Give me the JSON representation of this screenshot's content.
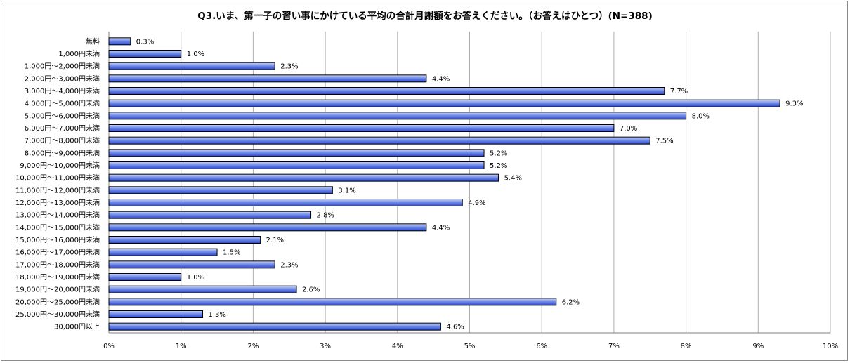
{
  "chart_data": {
    "type": "bar",
    "orientation": "horizontal",
    "title": "Q3.いま、第一子の習い事にかけている平均の合計月謝額をお答えください。（お答えはひとつ）(N=388)",
    "categories": [
      "無料",
      "1,000円未満",
      "1,000円～2,000円未満",
      "2,000円～3,000円未満",
      "3,000円～4,000円未満",
      "4,000円～5,000円未満",
      "5,000円～6,000円未満",
      "6,000円～7,000円未満",
      "7,000円～8,000円未満",
      "8,000円～9,000円未満",
      "9,000円～10,000円未満",
      "10,000円～11,000円未満",
      "11,000円～12,000円未満",
      "12,000円～13,000円未満",
      "13,000円～14,000円未満",
      "14,000円～15,000円未満",
      "15,000円～16,000円未満",
      "16,000円～17,000円未満",
      "17,000円～18,000円未満",
      "18,000円～19,000円未満",
      "19,000円～20,000円未満",
      "20,000円～25,000円未満",
      "25,000円～30,000円未満",
      "30,000円以上"
    ],
    "values": [
      0.3,
      1.0,
      2.3,
      4.4,
      7.7,
      9.3,
      8.0,
      7.0,
      7.5,
      5.2,
      5.2,
      5.4,
      3.1,
      4.9,
      2.8,
      4.4,
      2.1,
      1.5,
      2.3,
      1.0,
      2.6,
      6.2,
      1.3,
      4.6
    ],
    "data_labels": [
      "0.3%",
      "1.0%",
      "2.3%",
      "4.4%",
      "7.7%",
      "9.3%",
      "8.0%",
      "7.0%",
      "7.5%",
      "5.2%",
      "5.2%",
      "5.4%",
      "3.1%",
      "4.9%",
      "2.8%",
      "4.4%",
      "2.1%",
      "1.5%",
      "2.3%",
      "1.0%",
      "2.6%",
      "6.2%",
      "1.3%",
      "4.6%"
    ],
    "xlim": [
      0,
      10
    ],
    "x_ticks": [
      "0%",
      "1%",
      "2%",
      "3%",
      "4%",
      "5%",
      "6%",
      "7%",
      "8%",
      "9%",
      "10%"
    ],
    "grid": true,
    "legend": "none",
    "colors": {
      "bar_light": "#c8d4f8",
      "bar_dark": "#3150d0",
      "bar_border": "#000000",
      "grid": "#b0b0b0"
    }
  }
}
